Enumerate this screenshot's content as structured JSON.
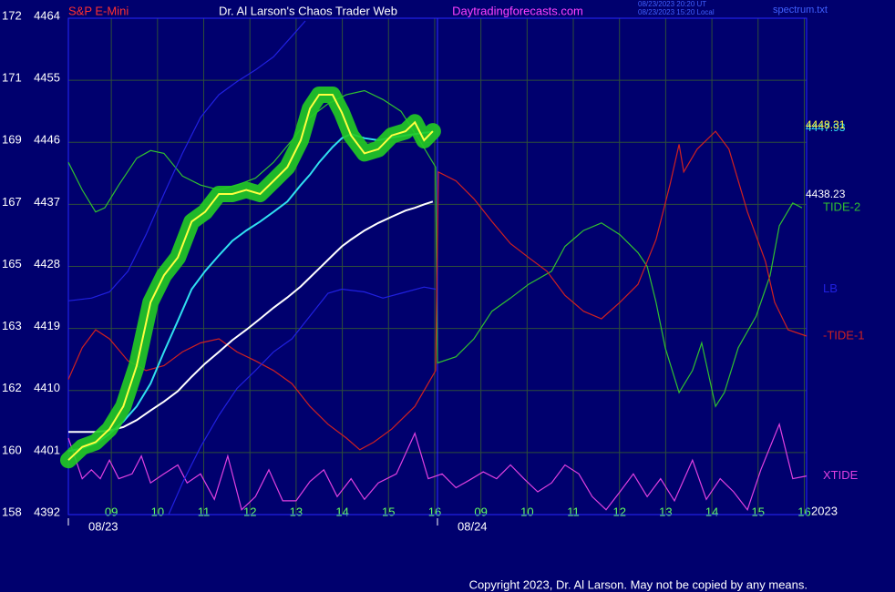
{
  "chart_data": {
    "type": "line",
    "instrument": "S&P E-Mini",
    "title": "Dr. Al Larson's Chaos Trader Web",
    "website": "Daytradingforecasts.com",
    "timestamps": [
      "08/23/2023 20:20 UT",
      "08/23/2023 15:20 Local"
    ],
    "file": "spectrum.txt",
    "copyright": "Copyright 2023, Dr. Al Larson. May not be copied by any means.",
    "year": "2023",
    "grid": true,
    "xlim": [
      -0.93,
      15.05
    ],
    "ylim": [
      4392,
      4464
    ],
    "yticks": [
      4392,
      4401,
      4410,
      4419,
      4428,
      4437,
      4446,
      4455,
      4464
    ],
    "y2lim": [
      158,
      172.4
    ],
    "y2ticks": [
      158,
      {
        "value": 159.8,
        "label": "160"
      },
      {
        "value": 161.6,
        "label": "162"
      },
      {
        "value": 163.4,
        "label": "163"
      },
      {
        "value": 165.2,
        "label": "165"
      },
      {
        "value": 167,
        "label": "167"
      },
      {
        "value": 168.8,
        "label": "169"
      },
      {
        "value": 170.6,
        "label": "171"
      },
      {
        "value": 172.4,
        "label": "172"
      }
    ],
    "xticks": [
      {
        "value": 0,
        "label": "09"
      },
      {
        "value": 1,
        "label": "10"
      },
      {
        "value": 2,
        "label": "11"
      },
      {
        "value": 3,
        "label": "12"
      },
      {
        "value": 4,
        "label": "13"
      },
      {
        "value": 5,
        "label": "14"
      },
      {
        "value": 6,
        "label": "15"
      },
      {
        "value": 7,
        "label": "16"
      },
      {
        "value": 8,
        "label": "09"
      },
      {
        "value": 9,
        "label": "10"
      },
      {
        "value": 10,
        "label": "11"
      },
      {
        "value": 11,
        "label": "12"
      },
      {
        "value": 12,
        "label": "13"
      },
      {
        "value": 13,
        "label": "14"
      },
      {
        "value": 14,
        "label": "15"
      },
      {
        "value": 15,
        "label": "16"
      }
    ],
    "date_ticks": [
      {
        "value": -0.93,
        "label": "08/23"
      },
      {
        "value": 7.06,
        "label": "08/24"
      }
    ],
    "series": [
      {
        "name": "TIDE-2",
        "color": "#30c030",
        "x": [
          -0.93,
          -0.63,
          -0.34,
          -0.14,
          0.16,
          0.55,
          0.85,
          1.14,
          1.54,
          1.93,
          2.33,
          2.72,
          3.12,
          3.51,
          3.91,
          4.3,
          4.69,
          5.09,
          5.48,
          5.88,
          6.27,
          6.67,
          7.02,
          7.06,
          7.46,
          7.85,
          8.24,
          8.64,
          9.03,
          9.53,
          9.82,
          10.22,
          10.61,
          11.01,
          11.4,
          11.6,
          11.79,
          11.99,
          12.29,
          12.58,
          12.78,
          13.08,
          13.27,
          13.57,
          13.96,
          14.26,
          14.46,
          14.75,
          14.95
        ],
        "values": [
          4443.1,
          4439.1,
          4435.9,
          4436.5,
          4439.8,
          4443.7,
          4444.8,
          4444.4,
          4441.1,
          4439.8,
          4439.1,
          4439.8,
          4440.8,
          4443.1,
          4446.3,
          4449.6,
          4451.6,
          4452.9,
          4453.5,
          4452.2,
          4450.5,
          4446.3,
          4442.4,
          4414.0,
          4414.9,
          4417.5,
          4421.5,
          4423.4,
          4425.4,
          4427.3,
          4430.9,
          4433.2,
          4434.3,
          4432.6,
          4430.0,
          4428.0,
          4422.8,
          4416.2,
          4409.7,
          4412.9,
          4416.9,
          4407.7,
          4409.7,
          4416.2,
          4420.8,
          4426.7,
          4433.9,
          4437.2,
          4436.5
        ]
      },
      {
        "name": "-TIDE-1",
        "color": "#d02020",
        "x": [
          -0.93,
          -0.63,
          -0.34,
          -0.04,
          0.36,
          0.75,
          1.14,
          1.54,
          1.93,
          2.33,
          2.72,
          3.12,
          3.51,
          3.91,
          4.3,
          4.69,
          5.09,
          5.38,
          5.68,
          6.07,
          6.57,
          7.02,
          7.08,
          7.46,
          7.85,
          8.24,
          8.64,
          9.03,
          9.43,
          9.82,
          10.22,
          10.61,
          11.01,
          11.4,
          11.79,
          12.09,
          12.29,
          12.39,
          12.68,
          13.08,
          13.37,
          13.77,
          14.16,
          14.36,
          14.65,
          15.05
        ],
        "values": [
          4411.6,
          4416.2,
          4418.8,
          4417.5,
          4414.3,
          4412.9,
          4413.6,
          4415.6,
          4416.9,
          4417.5,
          4415.6,
          4414.3,
          4412.9,
          4411.0,
          4407.7,
          4405.1,
          4403.1,
          4401.4,
          4402.5,
          4404.4,
          4407.7,
          4412.9,
          4441.7,
          4440.4,
          4437.8,
          4434.5,
          4431.3,
          4429.3,
          4427.3,
          4423.8,
          4421.5,
          4420.4,
          4422.8,
          4425.4,
          4431.9,
          4439.8,
          4445.7,
          4441.7,
          4445.0,
          4447.6,
          4445.0,
          4435.9,
          4428.7,
          4422.8,
          4418.8,
          4417.9
        ]
      },
      {
        "name": "XTIDE",
        "color": "#e040e0",
        "x": [
          -0.93,
          -0.63,
          -0.43,
          -0.24,
          -0.04,
          0.16,
          0.45,
          0.65,
          0.85,
          1.14,
          1.44,
          1.64,
          1.93,
          2.23,
          2.52,
          2.82,
          3.12,
          3.41,
          3.71,
          4.0,
          4.3,
          4.6,
          4.89,
          5.19,
          5.48,
          5.78,
          6.17,
          6.57,
          6.86,
          7.16,
          7.46,
          7.75,
          8.05,
          8.34,
          8.64,
          8.93,
          9.23,
          9.53,
          9.82,
          10.12,
          10.41,
          10.71,
          11.01,
          11.3,
          11.6,
          11.89,
          12.19,
          12.58,
          12.88,
          13.18,
          13.47,
          13.77,
          14.06,
          14.46,
          14.75,
          15.05
        ],
        "values": [
          4403.1,
          4397.2,
          4398.5,
          4397.2,
          4399.9,
          4397.2,
          4397.9,
          4400.5,
          4396.6,
          4397.9,
          4399.2,
          4396.6,
          4397.9,
          4394.2,
          4400.5,
          4392.7,
          4394.6,
          4398.5,
          4394.0,
          4394.0,
          4396.8,
          4398.5,
          4394.6,
          4397.2,
          4394.2,
          4396.6,
          4397.9,
          4403.8,
          4397.2,
          4397.9,
          4395.9,
          4397.0,
          4398.2,
          4397.2,
          4399.2,
          4397.2,
          4395.3,
          4396.6,
          4399.2,
          4397.9,
          4394.6,
          4392.7,
          4395.3,
          4397.9,
          4394.6,
          4397.2,
          4394.0,
          4399.9,
          4394.2,
          4397.2,
          4395.3,
          4392.7,
          4398.5,
          4405.1,
          4397.2,
          4397.6
        ]
      },
      {
        "color": "#2020e0",
        "x": [
          -0.93,
          -0.43,
          -0.04,
          0.36,
          0.75,
          1.14,
          1.54,
          1.93,
          2.33,
          2.72,
          3.12,
          3.51,
          3.91,
          4.2
        ],
        "values": [
          4423.0,
          4423.4,
          4424.3,
          4427.3,
          4432.6,
          4438.5,
          4444.4,
          4449.6,
          4452.9,
          4454.8,
          4456.5,
          4458.4,
          4461.4,
          4463.6
        ]
      },
      {
        "name": "LB",
        "color": "#2020e0",
        "x": [
          1.24,
          1.54,
          1.93,
          2.33,
          2.72,
          3.12,
          3.51,
          3.91,
          4.3,
          4.69,
          4.99,
          5.48,
          5.88,
          6.27,
          6.77,
          7.02
        ],
        "values": [
          4392.0,
          4396.6,
          4401.8,
          4406.4,
          4410.3,
          4412.9,
          4415.6,
          4417.5,
          4420.8,
          4424.1,
          4424.7,
          4424.3,
          4423.4,
          4424.1,
          4425.0,
          4424.7
        ]
      },
      {
        "color": "#ffffff",
        "end_value": 4438.23,
        "x": [
          -0.93,
          -0.63,
          -0.34,
          -0.04,
          0.26,
          0.55,
          0.85,
          1.14,
          1.44,
          1.74,
          2.03,
          2.33,
          2.62,
          2.92,
          3.22,
          3.51,
          3.81,
          4.1,
          4.3,
          4.5,
          4.79,
          4.99,
          5.19,
          5.48,
          5.78,
          6.07,
          6.37,
          6.57,
          6.77,
          6.96
        ],
        "values": [
          4404.0,
          4404.0,
          4404.0,
          4404.2,
          4404.7,
          4405.7,
          4407.1,
          4408.4,
          4409.9,
          4412.0,
          4413.9,
          4415.6,
          4417.3,
          4418.8,
          4420.4,
          4422.0,
          4423.5,
          4425.1,
          4426.4,
          4427.7,
          4429.6,
          4430.9,
          4431.9,
          4433.2,
          4434.3,
          4435.2,
          4436.1,
          4436.5,
          4437.0,
          4437.4
        ]
      },
      {
        "color": "#30e0f0",
        "end_value": 4447.93,
        "x": [
          -0.93,
          -0.63,
          -0.34,
          -0.04,
          0.26,
          0.55,
          0.85,
          1.14,
          1.44,
          1.74,
          2.03,
          2.33,
          2.62,
          2.92,
          3.22,
          3.51,
          3.81,
          4.1,
          4.3,
          4.5,
          4.79,
          4.99,
          5.19,
          5.48,
          5.78,
          6.07,
          6.37,
          6.57,
          6.77,
          6.96
        ],
        "values": [
          4401.2,
          4401.6,
          4402.3,
          4403.7,
          4405.5,
          4407.7,
          4411.0,
          4415.6,
          4420.1,
          4424.7,
          4427.3,
          4429.6,
          4431.7,
          4433.2,
          4434.5,
          4435.9,
          4437.4,
          4439.8,
          4441.3,
          4443.1,
          4445.3,
          4446.6,
          4447.2,
          4446.6,
          4446.3,
          4446.7,
          4447.0,
          4447.2,
          4447.4,
          4447.5
        ]
      },
      {
        "color": "#ffff40",
        "glow": "#22cc22",
        "end_value": 4448.31,
        "x": [
          -0.93,
          -0.63,
          -0.34,
          -0.04,
          0.26,
          0.55,
          0.85,
          1.14,
          1.44,
          1.74,
          2.03,
          2.33,
          2.62,
          2.92,
          3.22,
          3.51,
          3.81,
          4.1,
          4.3,
          4.5,
          4.79,
          4.99,
          5.19,
          5.48,
          5.78,
          6.07,
          6.37,
          6.57,
          6.77,
          6.96
        ],
        "values": [
          4399.9,
          4401.8,
          4402.5,
          4404.4,
          4407.7,
          4413.6,
          4422.8,
          4426.7,
          4429.3,
          4434.5,
          4435.9,
          4438.5,
          4438.5,
          4439.1,
          4438.5,
          4440.4,
          4442.4,
          4446.3,
          4450.9,
          4452.9,
          4452.9,
          4450.3,
          4447.0,
          4444.4,
          4445.0,
          4447.0,
          4447.6,
          4448.9,
          4446.3,
          4447.6
        ]
      }
    ]
  }
}
